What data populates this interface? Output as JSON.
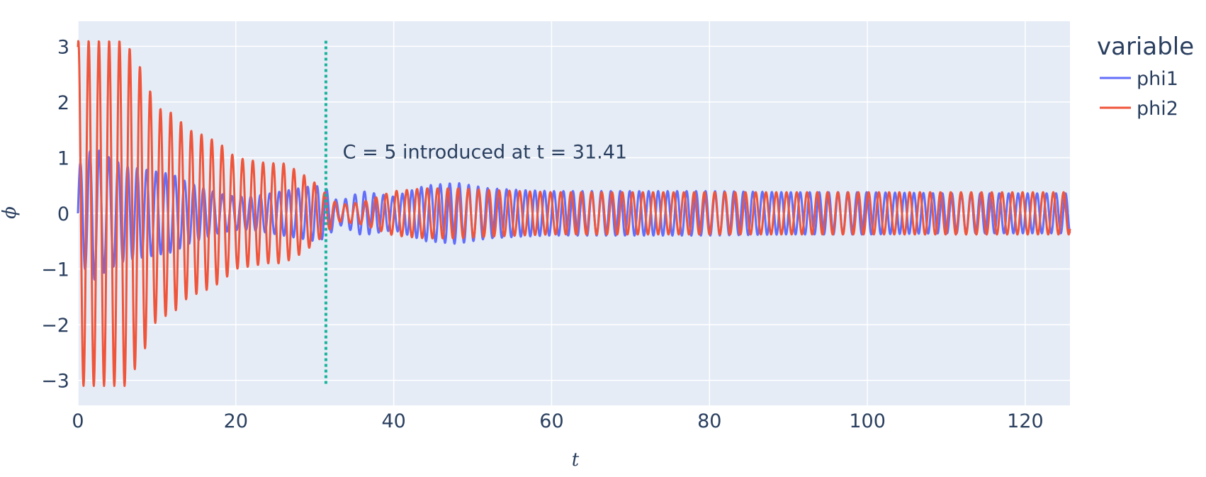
{
  "chart_data": {
    "type": "line",
    "xlabel": "t",
    "ylabel": "ϕ",
    "xlim": [
      0,
      125.66
    ],
    "ylim": [
      -3.45,
      3.45
    ],
    "x_ticks": [
      0,
      20,
      40,
      60,
      80,
      100,
      120
    ],
    "y_ticks": [
      3,
      2,
      1,
      0,
      -1,
      -2,
      -3
    ],
    "y_tick_labels": [
      "3",
      "2",
      "1",
      "0",
      "−1",
      "−2",
      "−3"
    ],
    "grid": true,
    "legend": {
      "title": "variable",
      "position": "top-right"
    },
    "series": [
      {
        "name": "phi1",
        "color": "#636efa",
        "x": [
          0,
          2,
          4,
          6,
          8,
          10,
          12,
          14,
          16,
          18,
          20,
          22,
          24,
          26,
          28,
          30,
          31.41,
          33,
          36,
          40,
          44,
          48,
          52,
          56,
          60,
          70,
          80,
          90,
          100,
          110,
          120,
          125.66
        ],
        "amplitude": [
          0.85,
          1.2,
          1.0,
          0.85,
          0.8,
          0.75,
          0.7,
          0.55,
          0.45,
          0.35,
          0.3,
          0.3,
          0.35,
          0.4,
          0.45,
          0.5,
          0.45,
          0.2,
          0.4,
          0.3,
          0.5,
          0.55,
          0.45,
          0.42,
          0.4,
          0.4,
          0.4,
          0.38,
          0.38,
          0.36,
          0.36,
          0.36
        ],
        "period": 1.2
      },
      {
        "name": "phi2",
        "color": "#ef553b",
        "x": [
          0,
          2,
          4,
          6,
          8,
          10,
          12,
          14,
          16,
          18,
          20,
          22,
          24,
          26,
          28,
          30,
          31.41,
          33,
          36,
          40,
          44,
          48,
          52,
          56,
          60,
          70,
          80,
          90,
          100,
          110,
          120,
          125.66
        ],
        "amplitude": [
          3.1,
          3.1,
          3.1,
          3.1,
          2.6,
          1.9,
          1.8,
          1.5,
          1.4,
          1.25,
          1.0,
          0.95,
          0.9,
          0.9,
          0.75,
          0.55,
          0.35,
          0.15,
          0.2,
          0.4,
          0.45,
          0.45,
          0.42,
          0.4,
          0.38,
          0.38,
          0.38,
          0.38,
          0.38,
          0.38,
          0.38,
          0.38
        ],
        "period": 1.3
      }
    ],
    "vline": {
      "x": 31.41,
      "ymin": -3.1,
      "ymax": 3.1,
      "color": "#19b39c",
      "dash": "dotted"
    },
    "annotation": {
      "text": "C = 5 introduced at t = 31.41",
      "x": 33,
      "y": 1.1
    }
  }
}
